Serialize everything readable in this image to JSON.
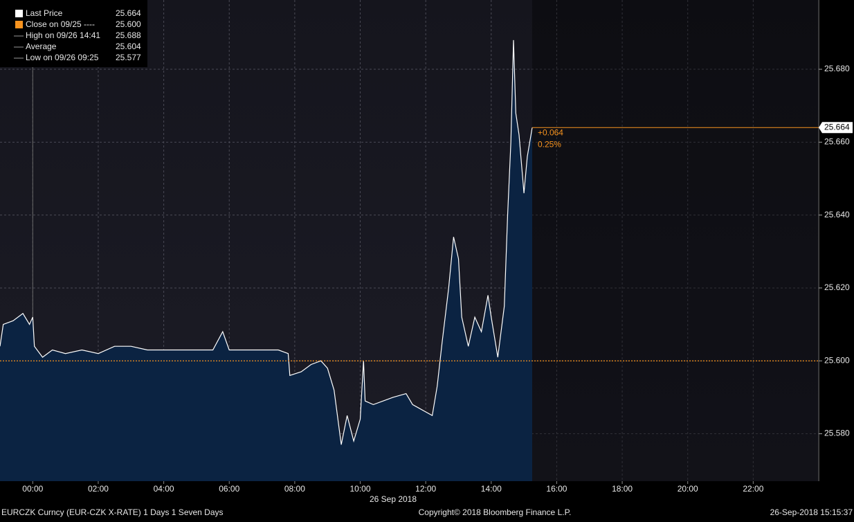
{
  "chart_data": {
    "type": "area",
    "x_label": "26 Sep 2018",
    "xlim": [
      -1,
      24
    ],
    "xticks": [
      {
        "value": 0,
        "label": "00:00"
      },
      {
        "value": 2,
        "label": "02:00"
      },
      {
        "value": 4,
        "label": "04:00"
      },
      {
        "value": 6,
        "label": "06:00"
      },
      {
        "value": 8,
        "label": "08:00"
      },
      {
        "value": 10,
        "label": "10:00"
      },
      {
        "value": 12,
        "label": "12:00"
      },
      {
        "value": 14,
        "label": "14:00"
      },
      {
        "value": 16,
        "label": "16:00"
      },
      {
        "value": 18,
        "label": "18:00"
      },
      {
        "value": 20,
        "label": "20:00"
      },
      {
        "value": 22,
        "label": "22:00"
      }
    ],
    "ylim": [
      25.567,
      25.699
    ],
    "yticks": [
      {
        "value": 25.58,
        "label": "25.580"
      },
      {
        "value": 25.6,
        "label": "25.600"
      },
      {
        "value": 25.62,
        "label": "25.620"
      },
      {
        "value": 25.64,
        "label": "25.640"
      },
      {
        "value": 25.66,
        "label": "25.660"
      },
      {
        "value": 25.68,
        "label": "25.680"
      }
    ],
    "grid": true,
    "x": [
      -1.0,
      -0.9,
      -0.6,
      -0.3,
      -0.1,
      0.0,
      0.05,
      0.3,
      0.6,
      1.0,
      1.5,
      2.0,
      2.5,
      3.0,
      3.5,
      4.0,
      4.5,
      5.0,
      5.5,
      5.8,
      6.0,
      6.5,
      7.0,
      7.5,
      7.8,
      7.85,
      8.2,
      8.5,
      8.8,
      9.0,
      9.2,
      9.42,
      9.6,
      9.8,
      10.0,
      10.1,
      10.15,
      10.4,
      10.7,
      11.0,
      11.4,
      11.6,
      11.8,
      12.0,
      12.2,
      12.35,
      12.5,
      12.7,
      12.85,
      13.0,
      13.1,
      13.3,
      13.5,
      13.7,
      13.9,
      14.0,
      14.2,
      14.4,
      14.5,
      14.6,
      14.68,
      14.75,
      14.85,
      15.0,
      15.1,
      15.25
    ],
    "series": [
      {
        "name": "Last Price",
        "color": "#ffffff",
        "fill": "#0b2342",
        "values": [
          25.604,
          25.61,
          25.611,
          25.613,
          25.61,
          25.612,
          25.604,
          25.601,
          25.603,
          25.602,
          25.603,
          25.602,
          25.604,
          25.604,
          25.603,
          25.603,
          25.603,
          25.603,
          25.603,
          25.608,
          25.603,
          25.603,
          25.603,
          25.603,
          25.602,
          25.596,
          25.597,
          25.599,
          25.6,
          25.598,
          25.592,
          25.577,
          25.585,
          25.578,
          25.584,
          25.6,
          25.589,
          25.588,
          25.589,
          25.59,
          25.591,
          25.588,
          25.587,
          25.586,
          25.585,
          25.593,
          25.605,
          25.62,
          25.634,
          25.628,
          25.612,
          25.604,
          25.612,
          25.608,
          25.618,
          25.612,
          25.601,
          25.615,
          25.64,
          25.66,
          25.688,
          25.668,
          25.662,
          25.646,
          25.656,
          25.664
        ]
      }
    ],
    "reference_line": {
      "value": 25.6,
      "color": "#f7931e"
    },
    "last_tag": {
      "value": 25.664,
      "label": "25.664",
      "color": "#f7931e"
    },
    "change": "+0.064",
    "change_pct": "0.25%",
    "legend": [
      {
        "label": "Last Price",
        "value": "25.664"
      },
      {
        "label": "Close on 09/25 ----",
        "value": "25.600"
      },
      {
        "label": "High on 09/26 14:41",
        "value": "25.688"
      },
      {
        "label": "Average",
        "value": "25.604"
      },
      {
        "label": "Low on 09/26 09:25",
        "value": "25.577"
      }
    ],
    "footer": {
      "left": "EURCZK Curncy (EUR-CZK X-RATE) 1 Days 1 Seven Days",
      "center": "Copyright© 2018 Bloomberg Finance L.P.",
      "right": "26-Sep-2018 15:15:37"
    }
  }
}
